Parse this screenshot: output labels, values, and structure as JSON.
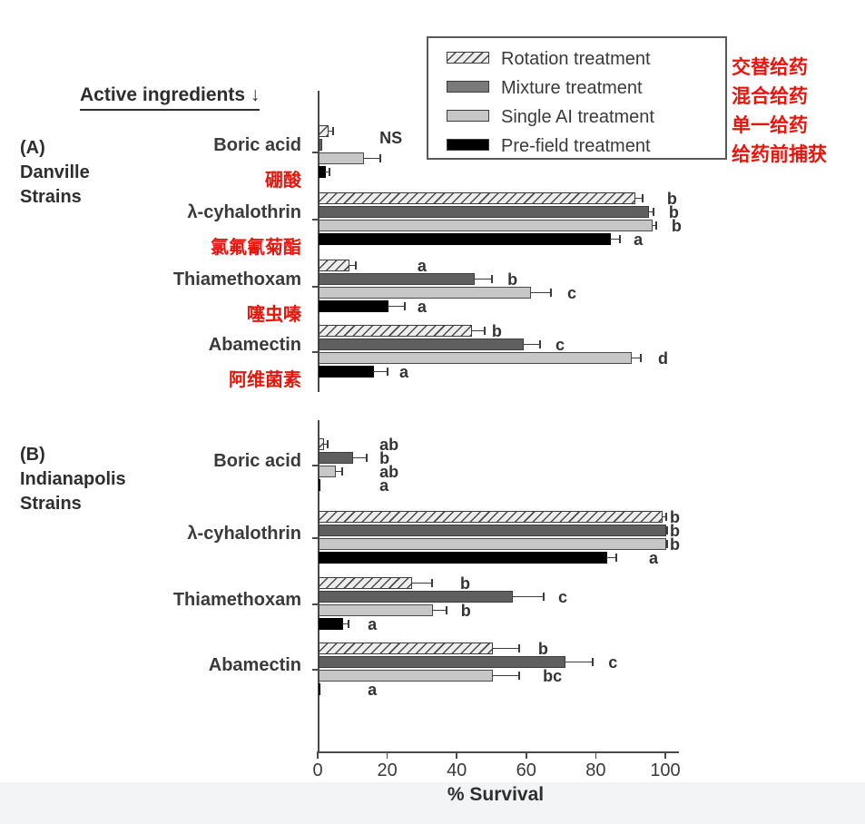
{
  "figure": {
    "header": "Active ingredients ↓",
    "xlabel": "% Survival"
  },
  "colors": {
    "red_annotation": "#e8150d",
    "rotation_fill": "#ededed",
    "hatch": "#4a4a4a",
    "mixture": "#5f5f5f",
    "single_ai": "#c7c7c7",
    "prefield": "#000000",
    "axis": "#4a4a4a",
    "text": "#3a3a3a",
    "footer_strip": "#f3f4f6"
  },
  "legend": {
    "items": [
      {
        "label": "Rotation treatment",
        "zh": "交替给药",
        "pattern": "rotation"
      },
      {
        "label": "Mixture treatment",
        "zh": "混合给药",
        "pattern": "mixture"
      },
      {
        "label": "Single AI treatment",
        "zh": "单一给药",
        "pattern": "single"
      },
      {
        "label": "Pre-field treatment",
        "zh": "给药前捕获",
        "pattern": "prefield"
      }
    ]
  },
  "chart_data": {
    "type": "bar",
    "orientation": "horizontal",
    "xlabel": "% Survival",
    "x_ticks": [
      0,
      20,
      40,
      60,
      80,
      100
    ],
    "xlim": [
      0,
      105
    ],
    "grid": false,
    "legend_position": "top-right",
    "series_names": [
      "Rotation treatment",
      "Mixture treatment",
      "Single AI treatment",
      "Pre-field treatment"
    ],
    "panels": [
      {
        "id": "A",
        "label": "(A)\nDanville\nStrains",
        "groups": [
          {
            "category": "Boric acid",
            "category_zh": "硼酸",
            "annotation": {
              "text": "NS",
              "x": 17.8
            },
            "bars": [
              {
                "series": "Rotation treatment",
                "value": 3,
                "error_to": 4.5,
                "letter": "",
                "letter_x": null
              },
              {
                "series": "Mixture treatment",
                "value": 1,
                "error_to": null,
                "letter": "",
                "letter_x": null
              },
              {
                "series": "Single AI treatment",
                "value": 13,
                "error_to": 18,
                "letter": "",
                "letter_x": null
              },
              {
                "series": "Pre-field treatment",
                "value": 2,
                "error_to": 3.5,
                "letter": "",
                "letter_x": null
              }
            ]
          },
          {
            "category": "λ-cyhalothrin",
            "category_zh": "氯氟氰菊酯",
            "annotation": null,
            "bars": [
              {
                "series": "Rotation treatment",
                "value": 91,
                "error_to": 93.5,
                "letter": "b",
                "letter_x": 100.5
              },
              {
                "series": "Mixture treatment",
                "value": 95,
                "error_to": 96.5,
                "letter": "b",
                "letter_x": 101
              },
              {
                "series": "Single AI treatment",
                "value": 96,
                "error_to": 97.5,
                "letter": "b",
                "letter_x": 101.8
              },
              {
                "series": "Pre-field treatment",
                "value": 84,
                "error_to": 87,
                "letter": "a",
                "letter_x": 90.9
              }
            ]
          },
          {
            "category": "Thiamethoxam",
            "category_zh": "噻虫嗪",
            "annotation": null,
            "bars": [
              {
                "series": "Rotation treatment",
                "value": 9,
                "error_to": 11,
                "letter": "a",
                "letter_x": 28.7
              },
              {
                "series": "Mixture treatment",
                "value": 45,
                "error_to": 50,
                "letter": "b",
                "letter_x": 54.6
              },
              {
                "series": "Single AI treatment",
                "value": 61,
                "error_to": 67,
                "letter": "c",
                "letter_x": 71.8
              },
              {
                "series": "Pre-field treatment",
                "value": 20,
                "error_to": 25,
                "letter": "a",
                "letter_x": 28.7
              }
            ]
          },
          {
            "category": "Abamectin",
            "category_zh": "阿维菌素",
            "annotation": null,
            "bars": [
              {
                "series": "Rotation treatment",
                "value": 44,
                "error_to": 48,
                "letter": "b",
                "letter_x": 50.1
              },
              {
                "series": "Mixture treatment",
                "value": 59,
                "error_to": 64,
                "letter": "c",
                "letter_x": 68.4
              },
              {
                "series": "Single AI treatment",
                "value": 90,
                "error_to": 93,
                "letter": "d",
                "letter_x": 97.9
              },
              {
                "series": "Pre-field treatment",
                "value": 16,
                "error_to": 20,
                "letter": "a",
                "letter_x": 23.5
              }
            ]
          }
        ]
      },
      {
        "id": "B",
        "label": "(B)\nIndianapolis\nStrains",
        "groups": [
          {
            "category": "Boric acid",
            "category_zh": "",
            "annotation": null,
            "bars": [
              {
                "series": "Rotation treatment",
                "value": 1.5,
                "error_to": 3,
                "letter": "ab",
                "letter_x": 17.8
              },
              {
                "series": "Mixture treatment",
                "value": 10,
                "error_to": 14,
                "letter": "b",
                "letter_x": 17.8
              },
              {
                "series": "Single AI treatment",
                "value": 5,
                "error_to": 7,
                "letter": "ab",
                "letter_x": 17.8
              },
              {
                "series": "Pre-field treatment",
                "value": 0.5,
                "error_to": null,
                "letter": "a",
                "letter_x": 17.8
              }
            ]
          },
          {
            "category": "λ-cyhalothrin",
            "category_zh": "",
            "annotation": null,
            "bars": [
              {
                "series": "Rotation treatment",
                "value": 99,
                "error_to": 100.3,
                "letter": "b",
                "letter_x": 101.3
              },
              {
                "series": "Mixture treatment",
                "value": 100,
                "error_to": 100.6,
                "letter": "b",
                "letter_x": 101.3
              },
              {
                "series": "Single AI treatment",
                "value": 100,
                "error_to": 100.6,
                "letter": "b",
                "letter_x": 101.3
              },
              {
                "series": "Pre-field treatment",
                "value": 83,
                "error_to": 86,
                "letter": "a",
                "letter_x": 95.3
              }
            ]
          },
          {
            "category": "Thiamethoxam",
            "category_zh": "",
            "annotation": null,
            "bars": [
              {
                "series": "Rotation treatment",
                "value": 27,
                "error_to": 33,
                "letter": "b",
                "letter_x": 41
              },
              {
                "series": "Mixture treatment",
                "value": 56,
                "error_to": 65,
                "letter": "c",
                "letter_x": 69.2
              },
              {
                "series": "Single AI treatment",
                "value": 33,
                "error_to": 37,
                "letter": "b",
                "letter_x": 41.2
              },
              {
                "series": "Pre-field treatment",
                "value": 7,
                "error_to": 9,
                "letter": "a",
                "letter_x": 14.4
              }
            ]
          },
          {
            "category": "Abamectin",
            "category_zh": "",
            "annotation": null,
            "bars": [
              {
                "series": "Rotation treatment",
                "value": 50,
                "error_to": 58,
                "letter": "b",
                "letter_x": 63.4
              },
              {
                "series": "Mixture treatment",
                "value": 71,
                "error_to": 79,
                "letter": "c",
                "letter_x": 83.6
              },
              {
                "series": "Single AI treatment",
                "value": 50,
                "error_to": 58,
                "letter": "bc",
                "letter_x": 64.8
              },
              {
                "series": "Pre-field treatment",
                "value": 0.5,
                "error_to": null,
                "letter": "a",
                "letter_x": 14.4
              }
            ]
          }
        ]
      }
    ]
  }
}
